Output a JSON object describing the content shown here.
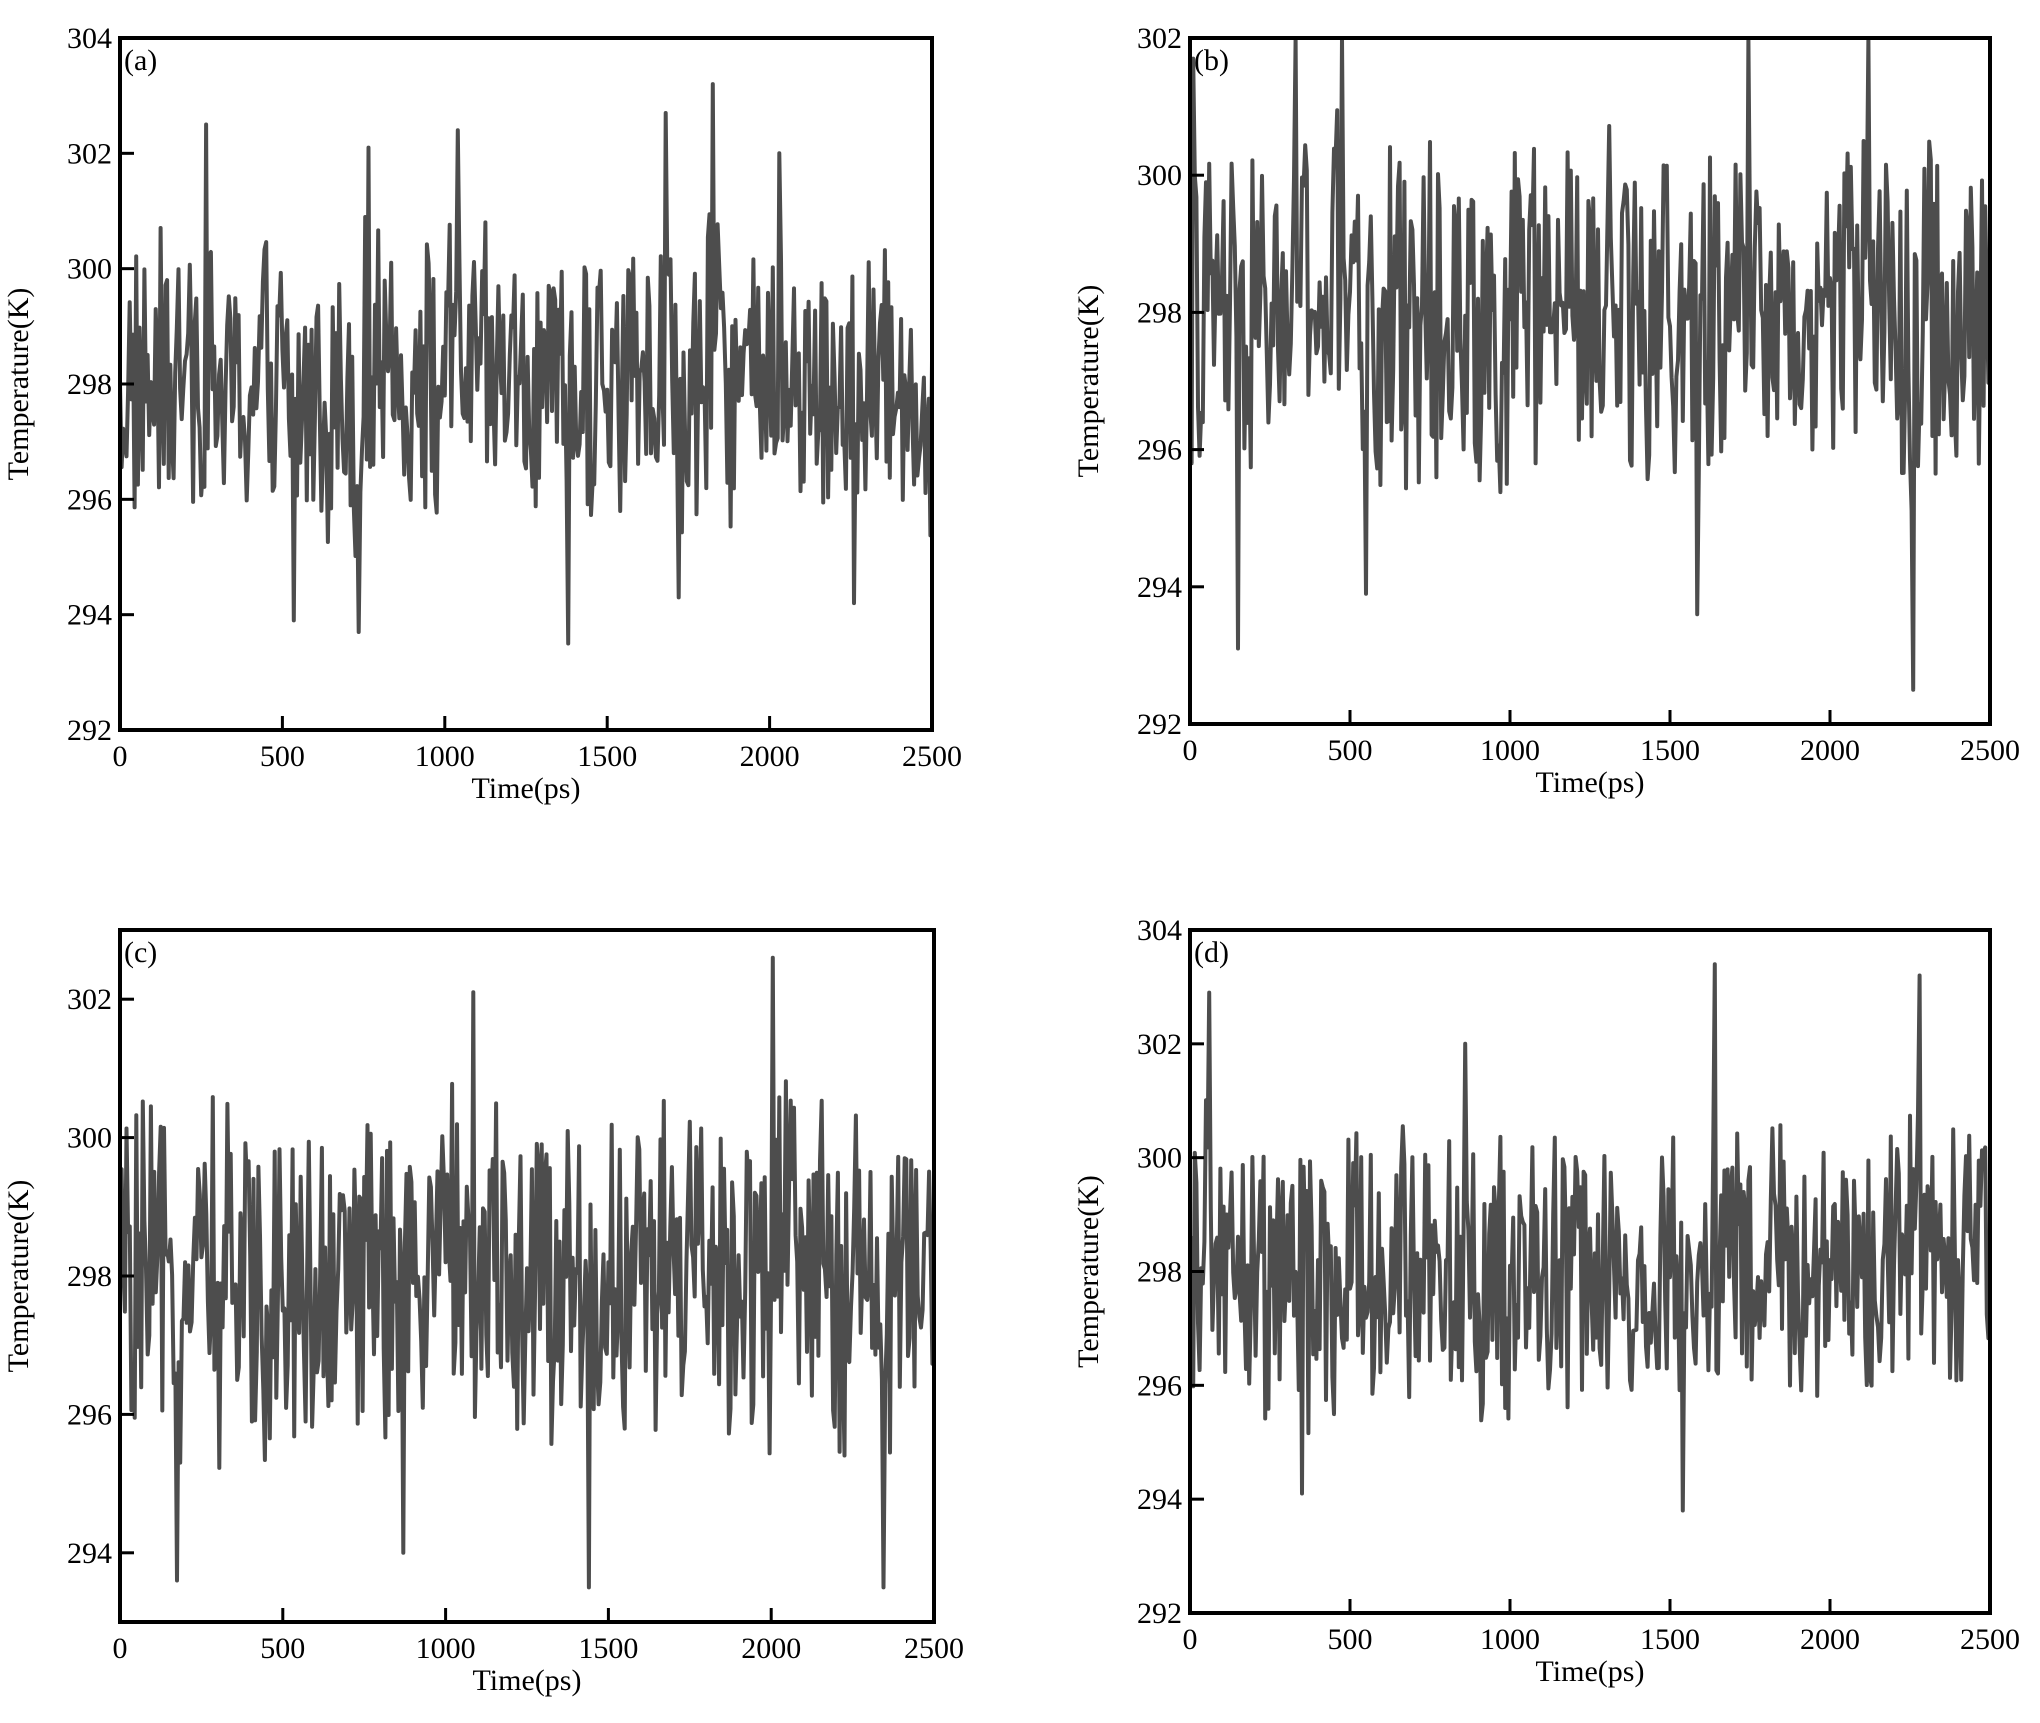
{
  "chart_data": [
    {
      "type": "line",
      "panel_label": "(a)",
      "xlabel": "Time(ps)",
      "ylabel": "Temperature(K)",
      "xlim": [
        0,
        2500
      ],
      "ylim": [
        292,
        304
      ],
      "xticks": [
        0,
        500,
        1000,
        1500,
        2000,
        2500
      ],
      "yticks": [
        292,
        294,
        296,
        298,
        300,
        302,
        304
      ],
      "ytick_labels": [
        "292",
        "294",
        "296",
        "298",
        "300",
        "302",
        "304"
      ],
      "line_color": "#4d4d4d",
      "series": [
        {
          "x": [
            0,
            100,
            200,
            265,
            300,
            400,
            500,
            535,
            600,
            700,
            735,
            765,
            800,
            900,
            1000,
            1040,
            1100,
            1200,
            1300,
            1380,
            1400,
            1500,
            1600,
            1680,
            1720,
            1800,
            1825,
            1900,
            2000,
            2030,
            2100,
            2200,
            2260,
            2300,
            2400,
            2500
          ],
          "y": [
            298.0,
            297.5,
            298.4,
            302.5,
            297.1,
            297.8,
            298.6,
            293.9,
            297.4,
            298.1,
            293.7,
            302.1,
            297.6,
            298.2,
            297.8,
            302.4,
            297.9,
            298.5,
            297.6,
            293.5,
            298.3,
            297.9,
            298.2,
            302.7,
            294.3,
            297.8,
            303.2,
            298.0,
            298.3,
            302.0,
            297.5,
            298.1,
            294.2,
            297.8,
            297.6,
            298.4
          ]
        }
      ]
    },
    {
      "type": "line",
      "panel_label": "(b)",
      "xlabel": "Time(ps)",
      "ylabel": "Temperature(K)",
      "xlim": [
        0,
        2500
      ],
      "ylim": [
        292,
        302
      ],
      "xticks": [
        0,
        500,
        1000,
        1500,
        2000,
        2500
      ],
      "yticks": [
        292,
        294,
        296,
        298,
        300,
        302
      ],
      "ytick_labels": [
        "292",
        "294",
        "296",
        "298",
        "300",
        "302"
      ],
      "line_color": "#4d4d4d",
      "series": [
        {
          "x": [
            0,
            10,
            40,
            100,
            150,
            200,
            300,
            330,
            400,
            475,
            500,
            550,
            600,
            700,
            800,
            900,
            1000,
            1100,
            1200,
            1300,
            1400,
            1500,
            1585,
            1600,
            1700,
            1745,
            1800,
            1900,
            2000,
            2100,
            2120,
            2200,
            2260,
            2300,
            2400,
            2500
          ],
          "y": [
            298.0,
            301.7,
            296.4,
            298.5,
            293.1,
            297.8,
            298.6,
            302.0,
            297.5,
            302.0,
            298.3,
            293.9,
            297.9,
            298.4,
            297.7,
            298.2,
            297.9,
            298.5,
            297.6,
            298.1,
            298.3,
            297.8,
            293.6,
            298.2,
            297.9,
            302.0,
            298.4,
            297.7,
            298.5,
            297.9,
            302.0,
            298.2,
            292.5,
            297.9,
            298.3,
            297.6
          ]
        }
      ]
    },
    {
      "type": "line",
      "panel_label": "(c)",
      "xlabel": "Time(ps)",
      "ylabel": "Temperature(K)",
      "xlim": [
        0,
        2500
      ],
      "ylim": [
        293,
        303
      ],
      "xticks": [
        0,
        500,
        1000,
        1500,
        2000,
        2500
      ],
      "yticks": [
        294,
        296,
        298,
        300,
        302
      ],
      "ytick_labels": [
        "294",
        "296",
        "298",
        "300",
        "302"
      ],
      "line_color": "#4d4d4d",
      "series": [
        {
          "x": [
            0,
            100,
            175,
            200,
            300,
            400,
            500,
            600,
            700,
            800,
            870,
            900,
            1000,
            1085,
            1100,
            1200,
            1300,
            1400,
            1440,
            1500,
            1600,
            1700,
            1800,
            1900,
            2000,
            2005,
            2100,
            2200,
            2300,
            2345,
            2400,
            2500
          ],
          "y": [
            298.0,
            297.6,
            293.6,
            298.2,
            297.9,
            298.3,
            297.5,
            298.1,
            297.8,
            298.4,
            294.0,
            297.9,
            298.2,
            302.1,
            297.8,
            298.3,
            297.6,
            298.1,
            293.5,
            298.2,
            297.9,
            298.4,
            297.7,
            298.3,
            298.0,
            302.6,
            297.8,
            298.3,
            297.9,
            293.5,
            298.2,
            297.9
          ]
        }
      ]
    },
    {
      "type": "line",
      "panel_label": "(d)",
      "xlabel": "Time(ps)",
      "ylabel": "Temperature(K)",
      "xlim": [
        0,
        2500
      ],
      "ylim": [
        292,
        304
      ],
      "xticks": [
        0,
        500,
        1000,
        1500,
        2000,
        2500
      ],
      "yticks": [
        292,
        294,
        296,
        298,
        300,
        302,
        304
      ],
      "ytick_labels": [
        "292",
        "294",
        "296",
        "298",
        "300",
        "302",
        "304"
      ],
      "line_color": "#4d4d4d",
      "series": [
        {
          "x": [
            0,
            60,
            100,
            200,
            300,
            350,
            400,
            500,
            600,
            700,
            800,
            860,
            900,
            1000,
            1100,
            1200,
            1300,
            1400,
            1500,
            1540,
            1600,
            1640,
            1700,
            1800,
            1900,
            2000,
            2100,
            2200,
            2280,
            2300,
            2400,
            2500
          ],
          "y": [
            298.0,
            302.9,
            297.6,
            298.3,
            297.8,
            294.1,
            298.2,
            297.7,
            298.4,
            297.9,
            298.2,
            302.0,
            297.6,
            298.1,
            297.9,
            298.3,
            297.7,
            298.2,
            297.9,
            293.8,
            298.1,
            303.4,
            297.8,
            298.3,
            297.6,
            298.2,
            297.9,
            298.1,
            303.2,
            297.7,
            298.2,
            297.9
          ]
        }
      ]
    }
  ]
}
